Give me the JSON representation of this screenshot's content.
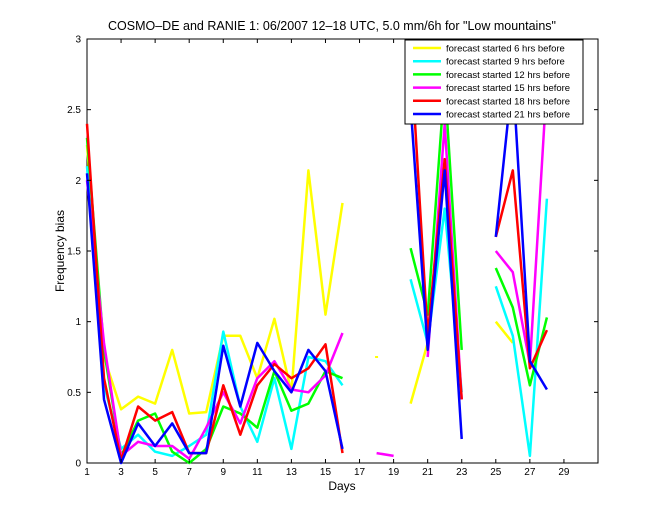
{
  "chart_data": {
    "type": "line",
    "title": "COSMO–DE and RANIE 1: 06/2007 12–18 UTC, 5.0 mm/6h for \"Low mountains\"",
    "xlabel": "Days",
    "ylabel": "Frequency bias",
    "xlim": [
      1,
      31
    ],
    "ylim": [
      0,
      3
    ],
    "xticks": [
      "1",
      "3",
      "5",
      "7",
      "9",
      "11",
      "13",
      "15",
      "17",
      "19",
      "21",
      "23",
      "25",
      "27",
      "29"
    ],
    "yticks": [
      "0",
      "0.5",
      "1",
      "1.5",
      "2",
      "2.5",
      "3"
    ],
    "grid": false,
    "legend_position": "top-right",
    "series": [
      {
        "name": "forecast started 6 hrs before",
        "color": "#ffff00",
        "points": [
          [
            1,
            2.25
          ],
          [
            2,
            0.75
          ],
          [
            3,
            0.38
          ],
          [
            4,
            0.47
          ],
          [
            5,
            0.42
          ],
          [
            6,
            0.8
          ],
          [
            7,
            0.35
          ],
          [
            8,
            0.36
          ],
          [
            9,
            0.9
          ],
          [
            10,
            0.9
          ],
          [
            11,
            0.6
          ],
          [
            12,
            1.02
          ],
          [
            13,
            0.5
          ],
          [
            14,
            2.07
          ],
          [
            15,
            1.05
          ],
          [
            16,
            1.84
          ],
          null,
          [
            18,
            0.75
          ],
          null,
          [
            20,
            0.42
          ],
          [
            21,
            0.85
          ],
          null,
          [
            25,
            1.0
          ],
          [
            26,
            0.85
          ]
        ]
      },
      {
        "name": "forecast started 9 hrs before",
        "color": "#00ffff",
        "points": [
          [
            1,
            2.1
          ],
          [
            2,
            0.55
          ],
          [
            3,
            0.1
          ],
          [
            4,
            0.2
          ],
          [
            5,
            0.08
          ],
          [
            6,
            0.05
          ],
          [
            7,
            0.12
          ],
          [
            8,
            0.2
          ],
          [
            9,
            0.93
          ],
          [
            10,
            0.4
          ],
          [
            11,
            0.15
          ],
          [
            12,
            0.6
          ],
          [
            13,
            0.1
          ],
          [
            14,
            0.75
          ],
          [
            15,
            0.72
          ],
          [
            16,
            0.55
          ],
          null,
          [
            20,
            1.3
          ],
          [
            21,
            0.85
          ],
          [
            22,
            1.8
          ],
          [
            23,
            0.5
          ],
          null,
          [
            25,
            1.25
          ],
          [
            26,
            0.9
          ],
          [
            27,
            0.05
          ],
          [
            28,
            1.87
          ]
        ]
      },
      {
        "name": "forecast started 12 hrs before",
        "color": "#00ff00",
        "points": [
          [
            1,
            2.3
          ],
          [
            2,
            0.8
          ],
          [
            3,
            0.05
          ],
          [
            4,
            0.3
          ],
          [
            5,
            0.35
          ],
          [
            6,
            0.08
          ],
          [
            7,
            0.0
          ],
          [
            8,
            0.1
          ],
          [
            9,
            0.4
          ],
          [
            10,
            0.35
          ],
          [
            11,
            0.25
          ],
          [
            12,
            0.65
          ],
          [
            13,
            0.37
          ],
          [
            14,
            0.42
          ],
          [
            15,
            0.65
          ],
          [
            16,
            0.6
          ],
          null,
          [
            20,
            1.52
          ],
          [
            21,
            1.05
          ],
          [
            22,
            2.7
          ],
          [
            23,
            0.8
          ],
          null,
          [
            25,
            1.38
          ],
          [
            26,
            1.1
          ],
          [
            27,
            0.55
          ],
          [
            28,
            1.03
          ]
        ]
      },
      {
        "name": "forecast started 15 hrs before",
        "color": "#ff00ff",
        "points": [
          [
            1,
            2.0
          ],
          [
            2,
            0.85
          ],
          [
            3,
            0.05
          ],
          [
            4,
            0.15
          ],
          [
            5,
            0.12
          ],
          [
            6,
            0.12
          ],
          [
            7,
            0.03
          ],
          [
            8,
            0.25
          ],
          [
            9,
            0.5
          ],
          [
            10,
            0.28
          ],
          [
            11,
            0.6
          ],
          [
            12,
            0.72
          ],
          [
            13,
            0.52
          ],
          [
            14,
            0.5
          ],
          [
            15,
            0.62
          ],
          [
            16,
            0.92
          ],
          null,
          [
            18,
            0.07
          ],
          [
            19,
            0.05
          ],
          null,
          [
            21,
            0.75
          ],
          [
            22,
            2.4
          ],
          [
            23,
            0.45
          ],
          null,
          [
            25,
            1.5
          ],
          [
            26,
            1.35
          ],
          [
            27,
            0.7
          ],
          [
            28,
            2.7
          ]
        ]
      },
      {
        "name": "forecast started 18 hrs before",
        "color": "#ff0000",
        "points": [
          [
            1,
            2.4
          ],
          [
            2,
            0.6
          ],
          [
            3,
            0.02
          ],
          [
            4,
            0.4
          ],
          [
            5,
            0.3
          ],
          [
            6,
            0.36
          ],
          [
            7,
            0.07
          ],
          [
            8,
            0.07
          ],
          [
            9,
            0.55
          ],
          [
            10,
            0.2
          ],
          [
            11,
            0.55
          ],
          [
            12,
            0.7
          ],
          [
            13,
            0.6
          ],
          [
            14,
            0.67
          ],
          [
            15,
            0.84
          ],
          [
            16,
            0.07
          ],
          null,
          [
            20,
            2.93
          ],
          [
            21,
            0.9
          ],
          [
            22,
            2.15
          ],
          [
            23,
            0.45
          ],
          null,
          [
            25,
            1.6
          ],
          [
            26,
            2.07
          ],
          [
            27,
            0.67
          ],
          [
            28,
            0.94
          ]
        ]
      },
      {
        "name": "forecast started 21 hrs before",
        "color": "#0000ff",
        "points": [
          [
            1,
            2.05
          ],
          [
            2,
            0.45
          ],
          [
            3,
            0.0
          ],
          [
            4,
            0.28
          ],
          [
            5,
            0.12
          ],
          [
            6,
            0.28
          ],
          [
            7,
            0.07
          ],
          [
            8,
            0.07
          ],
          [
            9,
            0.83
          ],
          [
            10,
            0.4
          ],
          [
            11,
            0.85
          ],
          [
            12,
            0.65
          ],
          [
            13,
            0.5
          ],
          [
            14,
            0.8
          ],
          [
            15,
            0.65
          ],
          [
            16,
            0.1
          ],
          null,
          [
            20,
            2.53
          ],
          [
            21,
            0.8
          ],
          [
            22,
            2.07
          ],
          [
            23,
            0.17
          ],
          null,
          [
            25,
            1.6
          ],
          [
            26,
            2.75
          ],
          [
            27,
            0.72
          ],
          [
            28,
            0.52
          ]
        ]
      }
    ]
  }
}
